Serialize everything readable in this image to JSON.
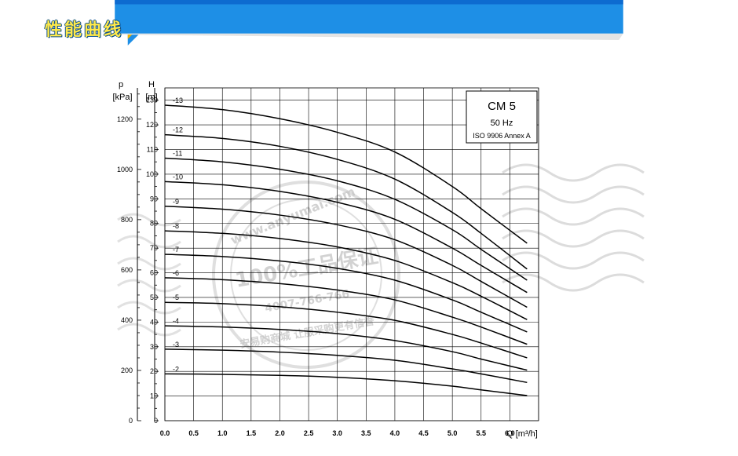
{
  "header": {
    "title": "性能曲线",
    "bar_color": "#1e8fe6",
    "title_color": "#ffe94a"
  },
  "chart_data": {
    "type": "line",
    "title": "",
    "legend_box": {
      "model": "CM 5",
      "frequency": "50 Hz",
      "standard": "ISO 9906 Annex A",
      "position": "top-right"
    },
    "xlabel": "Q [m³/h]",
    "ylabel_left": "p\n[kPa]",
    "ylabel_right": "H\n[m]",
    "xlim": [
      0,
      6.5
    ],
    "ylim": [
      0,
      135
    ],
    "x_ticks": [
      "0.0",
      "0.5",
      "1.0",
      "1.5",
      "2.0",
      "2.5",
      "3.0",
      "3.5",
      "4.0",
      "4.5",
      "5.0",
      "5.5",
      "6.0"
    ],
    "y_ticks_m": [
      "0",
      "10",
      "20",
      "30",
      "40",
      "50",
      "60",
      "70",
      "80",
      "90",
      "100",
      "110",
      "120",
      "130"
    ],
    "y_ticks_kpa": [
      "0",
      "200",
      "400",
      "600",
      "800",
      "1000",
      "1200"
    ],
    "grid": true,
    "series": [
      {
        "name": "-2",
        "x": [
          0,
          1,
          2,
          3,
          4,
          5,
          5.5,
          6.3
        ],
        "y": [
          19,
          18.8,
          18.4,
          17.6,
          16.2,
          14,
          12.5,
          10.2
        ]
      },
      {
        "name": "-3",
        "x": [
          0,
          1,
          2,
          3,
          4,
          5,
          5.5,
          6.3
        ],
        "y": [
          29,
          28.6,
          27.8,
          26.5,
          24.5,
          21,
          19,
          15.5
        ]
      },
      {
        "name": "-4",
        "x": [
          0,
          1,
          2,
          3,
          4,
          5,
          5.5,
          6.3
        ],
        "y": [
          38.5,
          38,
          37,
          35.3,
          32.5,
          28,
          25,
          20.5
        ]
      },
      {
        "name": "-5",
        "x": [
          0,
          1,
          2,
          3,
          4,
          5,
          5.5,
          6.3
        ],
        "y": [
          48,
          47.5,
          46.2,
          44,
          40.7,
          35,
          31.5,
          25.5
        ]
      },
      {
        "name": "-6",
        "x": [
          0,
          1,
          2,
          3,
          4,
          5,
          5.5,
          6.3
        ],
        "y": [
          58,
          57.2,
          55.6,
          53,
          49,
          42,
          38,
          31
        ]
      },
      {
        "name": "-7",
        "x": [
          0,
          1,
          2,
          3,
          4,
          5,
          5.5,
          6.3
        ],
        "y": [
          67.5,
          66.6,
          64.8,
          61.8,
          57,
          49,
          44,
          36
        ]
      },
      {
        "name": "-8",
        "x": [
          0,
          1,
          2,
          3,
          4,
          5,
          5.5,
          6.3
        ],
        "y": [
          77,
          76,
          73.9,
          70.5,
          65,
          56,
          50.5,
          41
        ]
      },
      {
        "name": "-9",
        "x": [
          0,
          1,
          2,
          3,
          4,
          5,
          5.5,
          6.3
        ],
        "y": [
          87,
          85.8,
          83.4,
          79.5,
          73.4,
          63,
          56.5,
          46
        ]
      },
      {
        "name": "-10",
        "x": [
          0,
          1,
          2,
          3,
          4,
          5,
          5.5,
          6.3
        ],
        "y": [
          97,
          95.7,
          93,
          88.6,
          81.7,
          70,
          63,
          52
        ]
      },
      {
        "name": "-11",
        "x": [
          0,
          1,
          2,
          3,
          4,
          5,
          5.5,
          6.3
        ],
        "y": [
          106.5,
          105,
          102,
          97.3,
          89.8,
          77.5,
          69.5,
          57
        ]
      },
      {
        "name": "-12",
        "x": [
          0,
          1,
          2,
          3,
          4,
          5,
          5.5,
          6.3
        ],
        "y": [
          116,
          114.5,
          111.3,
          106,
          98,
          84.5,
          76,
          61.5
        ]
      },
      {
        "name": "-13",
        "x": [
          0,
          1,
          2,
          3,
          4,
          5,
          5.5,
          6.3
        ],
        "y": [
          128,
          126.2,
          122.5,
          117,
          109,
          95,
          86,
          72
        ]
      }
    ]
  },
  "watermark": {
    "lines": [
      "www.anyumai.com",
      "100%工品保证",
      "4007-766-766",
      "安易购商城 让服采购更有信誉"
    ],
    "color": "#c4c4c4"
  }
}
